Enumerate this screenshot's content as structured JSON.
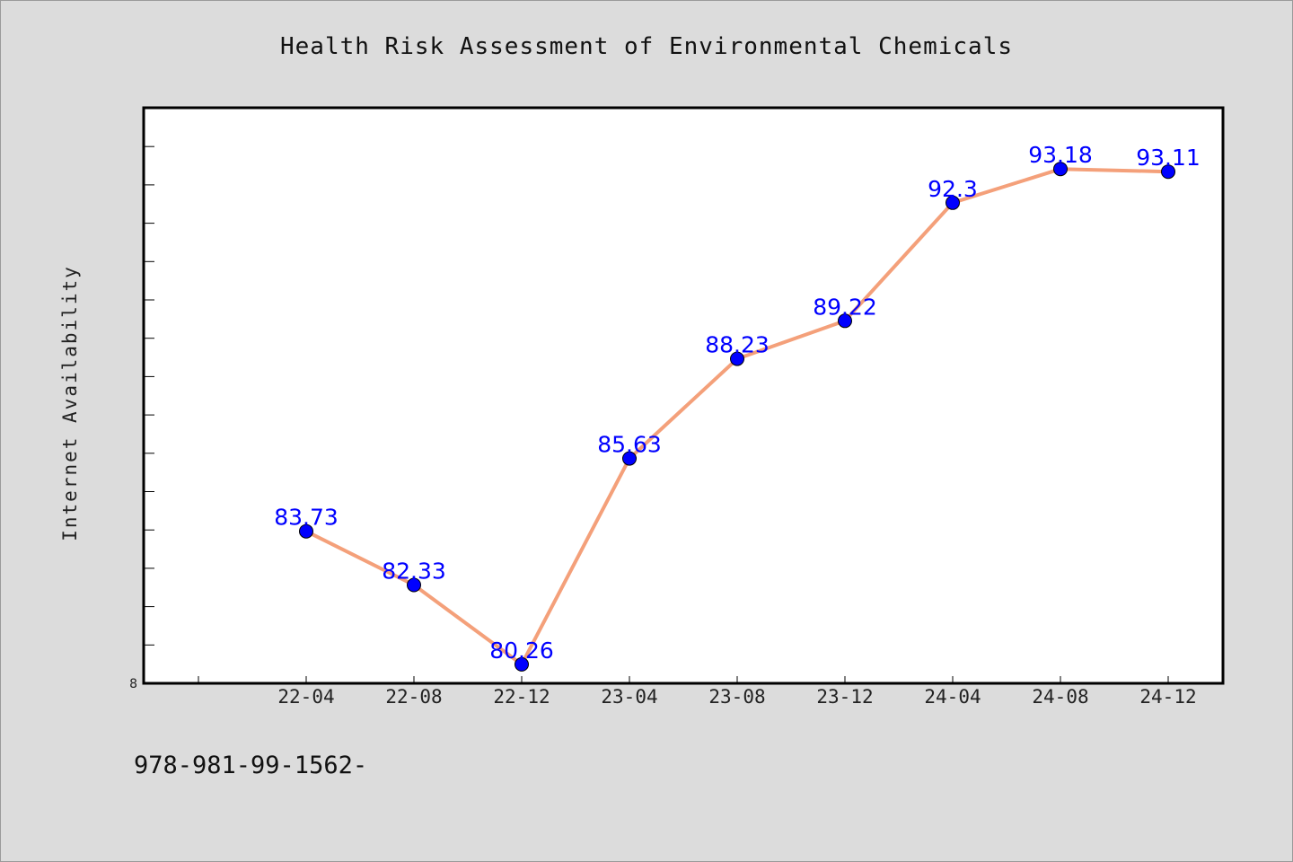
{
  "chart_data": {
    "type": "line",
    "title": "Health Risk Assessment of Environmental Chemicals",
    "xlabel": "",
    "ylabel": "Internet Availability",
    "categories": [
      "22-04",
      "22-08",
      "22-12",
      "23-04",
      "23-08",
      "23-12",
      "24-04",
      "24-08",
      "24-12"
    ],
    "series": [
      {
        "values": [
          83.73,
          82.33,
          80.26,
          85.63,
          88.23,
          89.22,
          92.3,
          93.18,
          93.11
        ],
        "labels": [
          "83.73",
          "82.33",
          "80.26",
          "85.63",
          "88.23",
          "89.22",
          "92.3",
          "93.18",
          "93.11"
        ]
      }
    ],
    "y_min_label": "8",
    "ylim": [
      80,
      95
    ],
    "grid": false,
    "legend": "none",
    "colors": {
      "line": "#f4a07a",
      "marker": "#0000ff",
      "data_label": "#0000ff",
      "plot_background": "#ffffff",
      "page_background": "#dcdcdc"
    }
  },
  "footnote": "978-981-99-1562-"
}
